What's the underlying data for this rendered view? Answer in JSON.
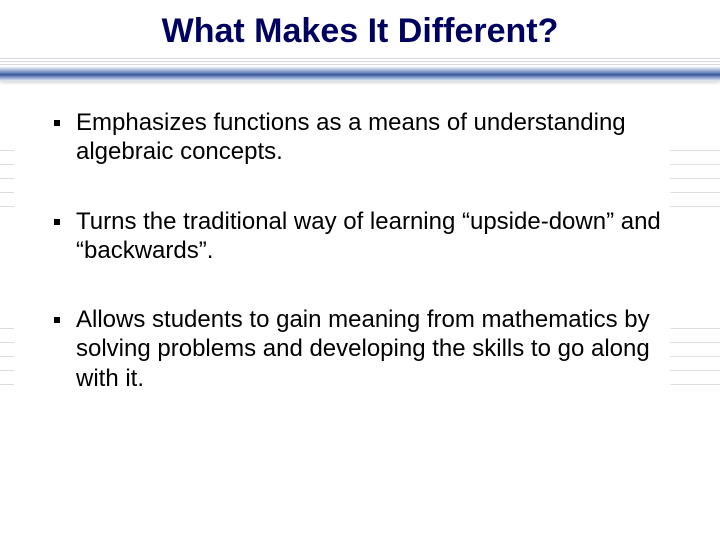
{
  "slide": {
    "title": "What Makes It Different?",
    "title_color": "#000060",
    "title_fontsize": 34,
    "background_color": "#ffffff",
    "divider": {
      "gradient_colors": [
        "#e9eef8",
        "#7e97c8",
        "#3a559a",
        "#7e97c8",
        "#e9eef8"
      ],
      "thin_line_color": "#d8d8dc"
    },
    "bullets": [
      {
        "text": "Emphasizes functions as a means of understanding algebraic concepts."
      },
      {
        "text": "Turns the traditional way of learning “upside-down” and “backwards”."
      },
      {
        "text": "Allows students to gain meaning from mathematics by solving problems and developing the skills to go along with it."
      }
    ],
    "body_fontsize": 24,
    "body_color": "#000000",
    "bullet_marker_color": "#000000"
  }
}
